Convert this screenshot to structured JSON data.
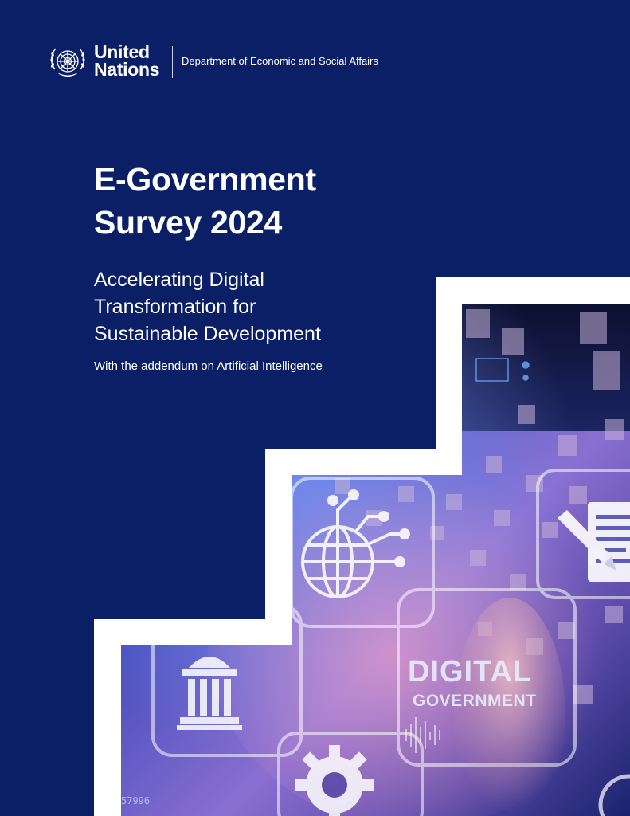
{
  "header": {
    "org_line1": "United",
    "org_line2": "Nations",
    "department": "Department of Economic and Social Affairs",
    "logo_icon": "un-emblem-icon"
  },
  "title": {
    "line1": "E-Government",
    "line2": "Survey 2024"
  },
  "subtitle": {
    "line1": "Accelerating Digital",
    "line2": "Transformation for",
    "line3": "Sustainable Development"
  },
  "tagline": "With the addendum on Artificial Intelligence",
  "image": {
    "label_line1": "DIGITAL",
    "label_line2": "GOVERNMENT",
    "number_text": "57996",
    "icons": [
      "globe-network-icon",
      "courthouse-icon",
      "gear-icon",
      "document-pencil-icon",
      "finger-touch-icon",
      "people-grid-icon"
    ]
  },
  "colors": {
    "background": "#0b1f66",
    "text": "#ffffff",
    "frame": "#ffffff",
    "image_purple": "#6a5fd0",
    "image_pink": "#c77aa8"
  }
}
